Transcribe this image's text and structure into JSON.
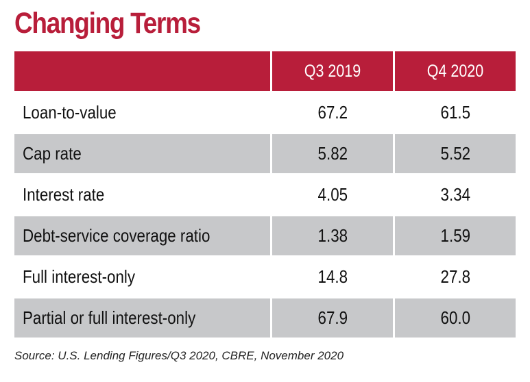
{
  "chart_data": {
    "type": "table",
    "title": "Changing Terms",
    "columns": [
      "",
      "Q3 2019",
      "Q4 2020"
    ],
    "rows": [
      {
        "label": "Loan-to-value",
        "values": [
          "67.2",
          "61.5"
        ]
      },
      {
        "label": "Cap rate",
        "values": [
          "5.82",
          "5.52"
        ]
      },
      {
        "label": "Interest rate",
        "values": [
          "4.05",
          "3.34"
        ]
      },
      {
        "label": "Debt-service coverage ratio",
        "values": [
          "1.38",
          "1.59"
        ]
      },
      {
        "label": "Full interest-only",
        "values": [
          "14.8",
          "27.8"
        ]
      },
      {
        "label": "Partial or full interest-only",
        "values": [
          "67.9",
          "60.0"
        ]
      }
    ],
    "source": "Source: U.S. Lending Figures/Q3 2020, CBRE, November 2020",
    "colors": {
      "header_bg": "#b81e3a",
      "title": "#b81e3a",
      "shaded_row": "#c7c8ca",
      "header_text": "#ffffff"
    }
  }
}
